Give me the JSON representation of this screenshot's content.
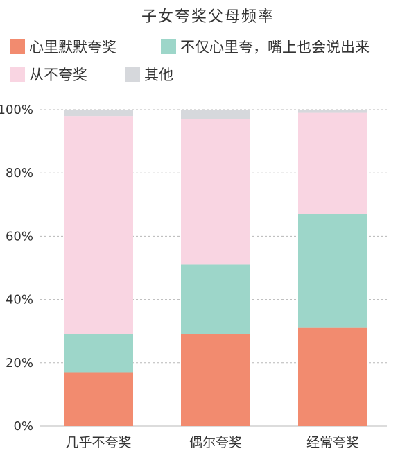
{
  "chart_data": {
    "type": "bar",
    "stacked": true,
    "title": "子女夸奖父母频率",
    "categories": [
      "几乎不夸奖",
      "偶尔夸奖",
      "经常夸奖"
    ],
    "series": [
      {
        "name": "心里默默夸奖",
        "color": "#f28b6f",
        "values": [
          17,
          29,
          31
        ]
      },
      {
        "name": "不仅心里夸，嘴上也会说出来",
        "color": "#9dd6c9",
        "values": [
          12,
          22,
          36
        ]
      },
      {
        "name": "从不夸奖",
        "color": "#f9d5e2",
        "values": [
          69,
          46,
          32
        ]
      },
      {
        "name": "其他",
        "color": "#d6d8dc",
        "values": [
          2,
          3,
          1
        ]
      }
    ],
    "ylim": [
      0,
      100
    ],
    "yticks": [
      "0%",
      "20%",
      "40%",
      "60%",
      "80%",
      "100%"
    ],
    "grid": true,
    "legend_position": "top-left"
  }
}
